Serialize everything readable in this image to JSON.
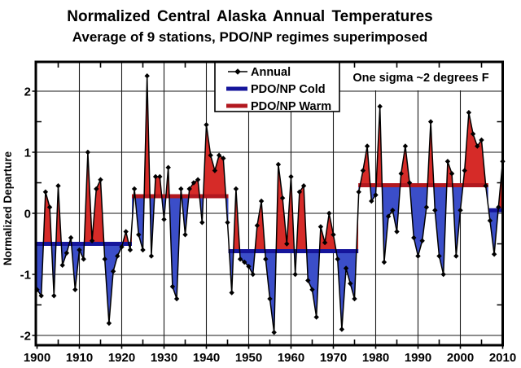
{
  "title": "Normalized Central Alaska Annual Temperatures",
  "subtitle": "Average of 9 stations, PDO/NP regimes superimposed",
  "annotation": "One sigma ~2 degrees F",
  "legend": {
    "items": [
      {
        "label": "Annual",
        "type": "line-with-diamond-marker",
        "color": "#000000"
      },
      {
        "label": "PDO/NP Cold",
        "type": "thick-line",
        "color": "#15159b"
      },
      {
        "label": "PDO/NP Warm",
        "type": "thick-line",
        "color": "#b2181f"
      }
    ]
  },
  "chart_data": {
    "type": "line",
    "title": "Normalized Central Alaska Annual Temperatures",
    "subtitle": "Average of 9 stations, PDO/NP regimes superimposed",
    "xlabel": "",
    "ylabel": "Normalized Departure",
    "xlim": [
      1900,
      2010
    ],
    "ylim": [
      -2.2,
      2.5
    ],
    "x_ticks": [
      1900,
      1910,
      1920,
      1930,
      1940,
      1950,
      1960,
      1970,
      1980,
      1990,
      2000,
      2010
    ],
    "x_minor_ticks": [
      1905,
      1915,
      1925,
      1935,
      1945,
      1955,
      1965,
      1975,
      1985,
      1995,
      2005
    ],
    "y_ticks": [
      -2,
      -1,
      0,
      1,
      2
    ],
    "y_minor_ticks": [
      -1.5,
      -0.5,
      0.5,
      1.5
    ],
    "grid": true,
    "legend_position": "top-inside",
    "annotation": "One sigma ~2 degrees F",
    "series": [
      {
        "name": "Annual",
        "year_start": 1900,
        "year_step": 1,
        "values": [
          -1.25,
          -1.35,
          0.35,
          0.1,
          -1.35,
          0.45,
          -0.85,
          -0.65,
          -0.4,
          -1.25,
          -0.6,
          -0.75,
          1.0,
          -0.45,
          0.4,
          0.55,
          -0.75,
          -1.8,
          -0.95,
          -0.7,
          -0.55,
          -0.3,
          -0.6,
          0.4,
          -0.35,
          -0.6,
          2.25,
          -0.7,
          0.6,
          0.6,
          -0.1,
          0.75,
          -1.2,
          -1.4,
          0.4,
          -0.35,
          0.4,
          0.5,
          0.55,
          -0.15,
          1.45,
          0.95,
          0.7,
          0.95,
          0.9,
          -0.15,
          -1.3,
          0.4,
          -0.75,
          -0.8,
          -0.87,
          -1.0,
          -0.2,
          0.2,
          -0.75,
          -1.4,
          -1.95,
          0.8,
          0.25,
          -0.5,
          0.6,
          -1.0,
          0.35,
          0.45,
          -1.1,
          -1.25,
          -1.7,
          -0.22,
          -0.48,
          0.0,
          -0.35,
          -0.75,
          -1.9,
          -0.9,
          -1.15,
          -1.4,
          0.35,
          0.7,
          1.1,
          0.2,
          0.3,
          1.75,
          -0.8,
          -0.05,
          0.05,
          -0.3,
          0.65,
          1.1,
          0.5,
          -0.4,
          -0.7,
          -0.45,
          0.1,
          1.5,
          0.05,
          -0.7,
          -1.0,
          0.85,
          0.65,
          -0.7,
          0.05,
          0.7,
          1.65,
          1.3,
          1.1,
          1.2,
          0.45,
          -0.12,
          -0.67,
          0.1,
          0.85
        ]
      }
    ],
    "regimes": [
      {
        "name": "PDO/NP Cold",
        "phase": "cold",
        "start": 1900,
        "end": 1922.4,
        "level": -0.5
      },
      {
        "name": "PDO/NP Warm",
        "phase": "warm",
        "start": 1922.4,
        "end": 1945.2,
        "level": 0.28
      },
      {
        "name": "PDO/NP Cold",
        "phase": "cold",
        "start": 1945.2,
        "end": 1975.9,
        "level": -0.62
      },
      {
        "name": "PDO/NP Warm",
        "phase": "warm",
        "start": 1975.9,
        "end": 2006.6,
        "level": 0.46
      },
      {
        "name": "PDO/NP Cold",
        "phase": "cold",
        "start": 2006.6,
        "end": 2010,
        "level": 0.05
      }
    ],
    "colors": {
      "annual_line": "#000000",
      "marker": "#000000",
      "cold_line": "#15159b",
      "warm_line": "#b2181f",
      "cold_fill": "#3b4ec9",
      "warm_fill": "#d62b28",
      "grid": "#1a1a1a",
      "border": "#000000",
      "background": "#ffffff",
      "text": "#000000"
    }
  }
}
